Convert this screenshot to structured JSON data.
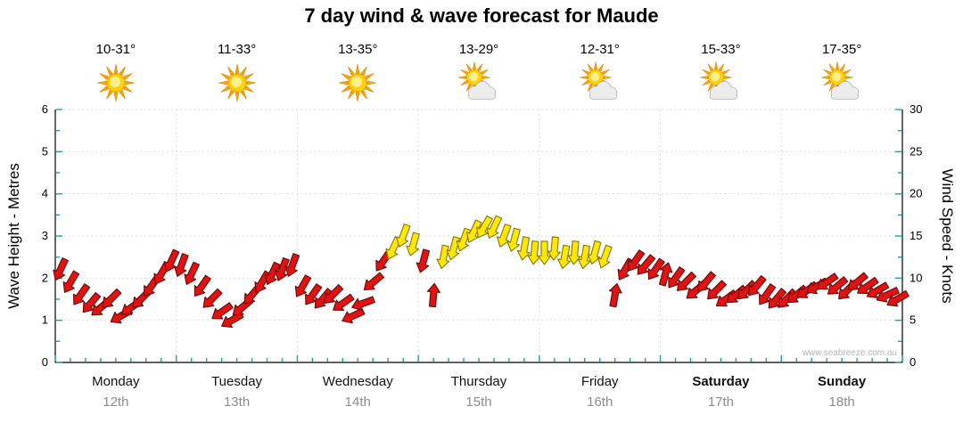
{
  "title": "7 day wind & wave forecast for Maude",
  "watermark": "www.seabreeze.com.au",
  "colors": {
    "axis": "#000000",
    "grid": "#dcdcdc",
    "tick": "#1aa3a3",
    "arrow_red": "#e01212",
    "arrow_red_stroke": "#6b0606",
    "arrow_yellow": "#ffe800",
    "arrow_yellow_stroke": "#857400",
    "date_text": "#8c8c8c"
  },
  "days": [
    {
      "name": "Monday",
      "date": "12th",
      "temp": "10-31°",
      "icon": "sunny",
      "bold": false
    },
    {
      "name": "Tuesday",
      "date": "13th",
      "temp": "11-33°",
      "icon": "sunny",
      "bold": false
    },
    {
      "name": "Wednesday",
      "date": "14th",
      "temp": "13-35°",
      "icon": "sunny",
      "bold": false
    },
    {
      "name": "Thursday",
      "date": "15th",
      "temp": "13-29°",
      "icon": "partly-cloudy",
      "bold": false
    },
    {
      "name": "Friday",
      "date": "16th",
      "temp": "12-31°",
      "icon": "partly-cloudy",
      "bold": false
    },
    {
      "name": "Saturday",
      "date": "17th",
      "temp": "15-33°",
      "icon": "partly-cloudy",
      "bold": true
    },
    {
      "name": "Sunday",
      "date": "18th",
      "temp": "17-35°",
      "icon": "partly-cloudy",
      "bold": true
    }
  ],
  "chart_data": {
    "type": "scatter",
    "glyph": "wind-arrow",
    "title": "7 day wind & wave forecast for Maude",
    "categories": [
      "Monday 12th",
      "Tuesday 13th",
      "Wednesday 14th",
      "Thursday 15th",
      "Friday 16th",
      "Saturday 17th",
      "Sunday 18th"
    ],
    "y_left": {
      "label": "Wave Height - Metres",
      "min": 0,
      "max": 6,
      "ticks": [
        0,
        1,
        2,
        3,
        4,
        5,
        6
      ]
    },
    "y_right": {
      "label": "Wind Speed - Knots",
      "min": 0,
      "max": 30,
      "ticks": [
        0,
        5,
        10,
        15,
        20,
        25,
        30
      ]
    },
    "samples_per_day": 12,
    "color_rule": {
      "red_below_knots": 12.5,
      "red": "#e01212",
      "yellow": "#ffe800"
    },
    "wind_knots": [
      [
        11,
        9.5,
        8,
        7,
        6.5,
        7.5,
        5.5,
        6.5,
        7.5,
        9,
        10.5,
        12
      ],
      [
        11.5,
        10.5,
        9,
        7.5,
        6,
        5,
        6.5,
        8,
        9.5,
        10.5,
        11,
        11.5
      ],
      [
        9,
        8,
        7.5,
        8,
        7,
        5.5,
        7,
        9.5,
        12,
        13.5,
        15,
        14
      ],
      [
        12,
        8,
        12.5,
        13.5,
        14.5,
        15.5,
        16,
        16,
        15,
        14.5,
        13.5,
        13
      ],
      [
        13,
        13.5,
        12.5,
        13,
        12.5,
        13,
        12.5,
        8,
        11,
        12,
        11.5,
        11
      ],
      [
        10.5,
        10,
        9.5,
        8.5,
        9.5,
        8.5,
        7.5,
        8,
        8.5,
        9,
        8,
        7.5
      ],
      [
        7.5,
        8,
        8.5,
        9,
        9.5,
        9,
        8.5,
        9.5,
        9,
        8.5,
        8,
        7.5
      ]
    ],
    "wind_dir_deg": [
      [
        205,
        210,
        215,
        220,
        230,
        225,
        240,
        235,
        225,
        215,
        210,
        205
      ],
      [
        200,
        205,
        215,
        225,
        235,
        240,
        230,
        220,
        210,
        205,
        200,
        200
      ],
      [
        210,
        215,
        220,
        225,
        235,
        245,
        250,
        230,
        215,
        205,
        200,
        195
      ],
      [
        195,
        5,
        190,
        195,
        200,
        205,
        210,
        205,
        200,
        195,
        190,
        185
      ],
      [
        180,
        185,
        190,
        185,
        190,
        195,
        200,
        10,
        210,
        215,
        220,
        215
      ],
      [
        15,
        215,
        225,
        230,
        220,
        225,
        235,
        230,
        225,
        220,
        215,
        220
      ],
      [
        225,
        230,
        235,
        240,
        235,
        230,
        225,
        230,
        235,
        240,
        245,
        240
      ]
    ]
  }
}
